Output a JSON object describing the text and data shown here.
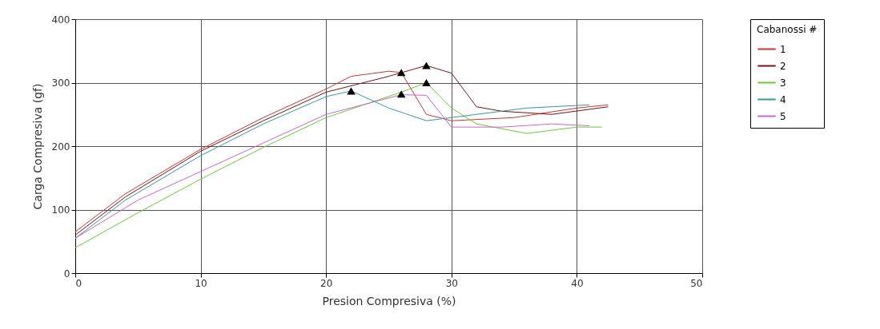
{
  "chart_data": {
    "type": "line",
    "xlabel": "Presion Compresiva (%)",
    "ylabel": "Carga Compresiva (gf)",
    "legend_title": "Cabanossi #",
    "legend": "right",
    "grid": true,
    "line_style": "solid",
    "xlim": [
      0,
      50
    ],
    "xticks": [
      0,
      10,
      20,
      30,
      40,
      50
    ],
    "ylim": [
      0,
      400
    ],
    "yticks": [
      0,
      100,
      200,
      300,
      400
    ],
    "series": [
      {
        "name": "1",
        "color": "#cc3333",
        "x": [
          0,
          4,
          10,
          15,
          20,
          22,
          25,
          26,
          28,
          30,
          35,
          40,
          42.5
        ],
        "values": [
          65,
          125,
          195,
          245,
          290,
          310,
          318,
          316,
          250,
          240,
          245,
          260,
          265
        ]
      },
      {
        "name": "2",
        "color": "#7a1010",
        "x": [
          0,
          4,
          10,
          15,
          20,
          25,
          28,
          30,
          32,
          34,
          38,
          42.5
        ],
        "values": [
          60,
          120,
          192,
          240,
          285,
          310,
          327,
          315,
          262,
          255,
          250,
          262
        ]
      },
      {
        "name": "3",
        "color": "#66cc33",
        "x": [
          0,
          5,
          10,
          15,
          20,
          26,
          28,
          30,
          32,
          36,
          40,
          42
        ],
        "values": [
          40,
          95,
          148,
          198,
          245,
          285,
          300,
          260,
          235,
          220,
          230,
          230
        ]
      },
      {
        "name": "4",
        "color": "#339999",
        "x": [
          0,
          4,
          10,
          15,
          20,
          22,
          25,
          28,
          32,
          36,
          41
        ],
        "values": [
          55,
          115,
          185,
          235,
          278,
          287,
          260,
          240,
          250,
          260,
          265
        ]
      },
      {
        "name": "5",
        "color": "#cc66cc",
        "x": [
          0,
          5,
          10,
          15,
          20,
          26,
          28,
          30,
          34,
          38,
          41
        ],
        "values": [
          55,
          115,
          160,
          205,
          250,
          281,
          280,
          230,
          230,
          235,
          232
        ]
      },
      {
        "type": "scatter",
        "color": "#000000",
        "marker": "triangle",
        "x": [
          22,
          26,
          26,
          28,
          28
        ],
        "values": [
          287,
          282,
          316,
          300,
          327
        ]
      }
    ]
  }
}
